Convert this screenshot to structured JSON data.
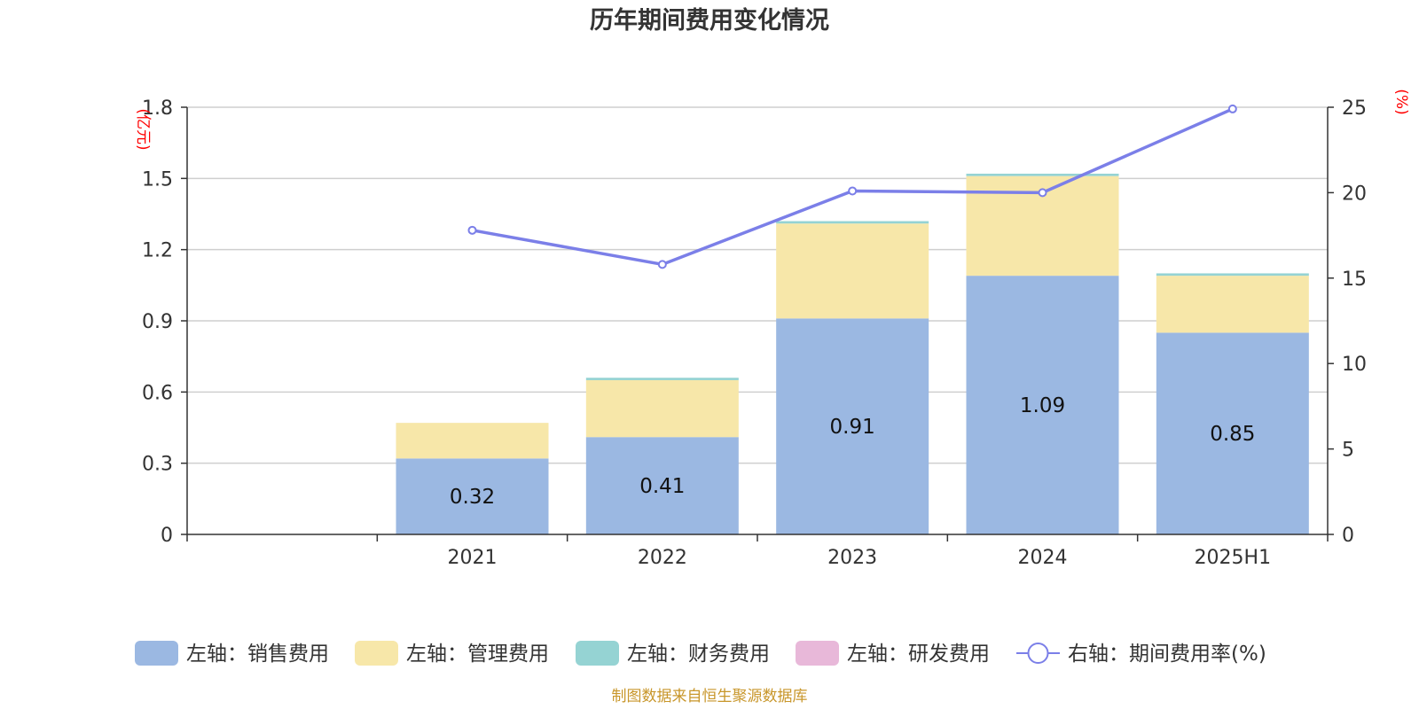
{
  "chart_data": {
    "type": "bar",
    "title": "历年期间费用变化情况",
    "categories": [
      "2021",
      "2022",
      "2023",
      "2024",
      "2025H1"
    ],
    "left_axis": {
      "unit_label": "(亿元)",
      "ylim": [
        0,
        1.8
      ],
      "ticks": [
        0,
        0.3,
        0.6,
        0.9,
        1.2,
        1.5,
        1.8
      ],
      "tick_labels": [
        "0",
        "0.3",
        "0.6",
        "0.9",
        "1.2",
        "1.5",
        "1.8"
      ]
    },
    "right_axis": {
      "unit_label": "(%)",
      "ylim": [
        0,
        25
      ],
      "ticks": [
        0,
        5,
        10,
        15,
        20,
        25
      ],
      "tick_labels": [
        "0",
        "5",
        "10",
        "15",
        "20",
        "25"
      ]
    },
    "series": [
      {
        "name": "左轴：销售费用",
        "type": "bar",
        "axis": "left",
        "color": "#9bb8e2",
        "values": [
          0.32,
          0.41,
          0.91,
          1.09,
          0.85
        ],
        "data_labels": [
          "0.32",
          "0.41",
          "0.91",
          "1.09",
          "0.85"
        ]
      },
      {
        "name": "左轴：管理费用",
        "type": "bar",
        "axis": "left",
        "color": "#f7e7a9",
        "values": [
          0.15,
          0.24,
          0.4,
          0.42,
          0.24
        ]
      },
      {
        "name": "左轴：财务费用",
        "type": "bar",
        "axis": "left",
        "color": "#95d3d3",
        "values": [
          0.0,
          0.01,
          0.01,
          0.01,
          0.01
        ]
      },
      {
        "name": "左轴：研发费用",
        "type": "bar",
        "axis": "left",
        "color": "#e8b8d9",
        "values": [
          0,
          0,
          0,
          0,
          0
        ]
      },
      {
        "name": "右轴：期间费用率(%)",
        "type": "line",
        "axis": "right",
        "color": "#7b7fe8",
        "values": [
          17.8,
          15.8,
          20.1,
          20.0,
          24.9
        ]
      }
    ],
    "grid": true,
    "legend_position": "bottom"
  },
  "footer": {
    "source": "制图数据来自恒生聚源数据库"
  }
}
